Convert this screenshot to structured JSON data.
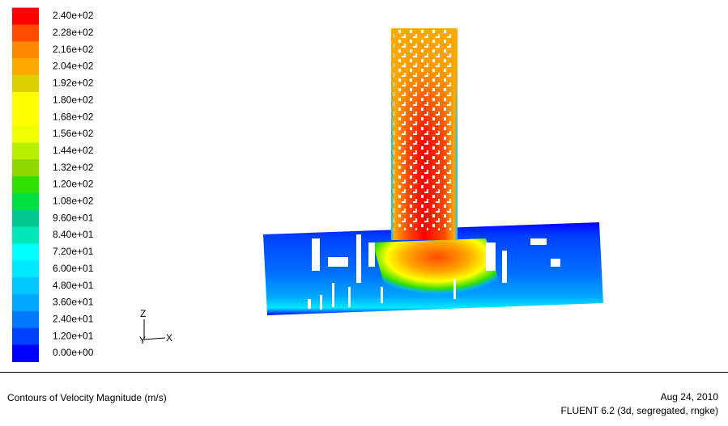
{
  "legend": {
    "levels": [
      {
        "label": "2.40e+02",
        "color": "#ff0000"
      },
      {
        "label": "2.28e+02",
        "color": "#ff4a00"
      },
      {
        "label": "2.16e+02",
        "color": "#ff8a00"
      },
      {
        "label": "2.04e+02",
        "color": "#ffa800"
      },
      {
        "label": "1.92e+02",
        "color": "#dcd000"
      },
      {
        "label": "1.80e+02",
        "color": "#ffff00"
      },
      {
        "label": "1.68e+02",
        "color": "#ffff00"
      },
      {
        "label": "1.56e+02",
        "color": "#f0ff00"
      },
      {
        "label": "1.44e+02",
        "color": "#b8f000"
      },
      {
        "label": "1.32e+02",
        "color": "#90d800"
      },
      {
        "label": "1.20e+02",
        "color": "#30e000"
      },
      {
        "label": "1.08e+02",
        "color": "#00e040"
      },
      {
        "label": "9.60e+01",
        "color": "#00c890"
      },
      {
        "label": "8.40e+01",
        "color": "#00e8b8"
      },
      {
        "label": "7.20e+01",
        "color": "#00ffff"
      },
      {
        "label": "6.00e+01",
        "color": "#00e8ff"
      },
      {
        "label": "4.80e+01",
        "color": "#00c8ff"
      },
      {
        "label": "3.60e+01",
        "color": "#00a8ff"
      },
      {
        "label": "2.40e+01",
        "color": "#0078ff"
      },
      {
        "label": "1.20e+01",
        "color": "#0040ff"
      },
      {
        "label": "0.00e+00",
        "color": "#0000ff"
      }
    ]
  },
  "axes": {
    "z": "Z",
    "y": "Y",
    "x": "X"
  },
  "caption": {
    "title": "Contours of Velocity Magnitude (m/s)",
    "date": "Aug 24, 2010",
    "solver": "FLUENT 6.2 (3d, segregated, rngke)"
  }
}
